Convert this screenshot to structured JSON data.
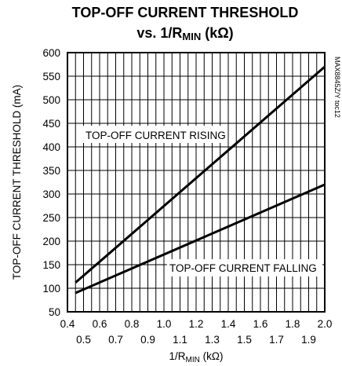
{
  "chart_data": {
    "type": "line",
    "title_line1": "TOP-OFF CURRENT THRESHOLD",
    "title_line2_prefix": "vs. 1/R",
    "title_line2_sub": "MIN",
    "title_line2_suffix": " (kΩ)",
    "xlabel_prefix": "1/R",
    "xlabel_sub": "MIN",
    "xlabel_suffix": " (kΩ)",
    "ylabel": "TOP-OFF CURRENT THRESHOLD (mA)",
    "xlim": [
      0.4,
      2.0
    ],
    "ylim": [
      50,
      600
    ],
    "x_ticks_top_row": [
      "0.4",
      "0.6",
      "0.8",
      "1.0",
      "1.2",
      "1.4",
      "1.6",
      "1.8",
      "2.0"
    ],
    "x_ticks_bottom_row": [
      "0.5",
      "0.7",
      "0.9",
      "1.1",
      "1.3",
      "1.5",
      "1.7",
      "1.9"
    ],
    "y_ticks": [
      "600",
      "550",
      "500",
      "450",
      "400",
      "350",
      "300",
      "250",
      "200",
      "150",
      "100",
      "50"
    ],
    "grid": true,
    "series": [
      {
        "name": "TOP-OFF CURRENT RISING",
        "x": [
          0.45,
          2.0
        ],
        "y": [
          112,
          570
        ]
      },
      {
        "name": "TOP-OFF CURRENT FALLING",
        "x": [
          0.45,
          2.0
        ],
        "y": [
          90,
          320
        ]
      }
    ],
    "annotations": [
      {
        "text": "TOP-OFF CURRENT RISING"
      },
      {
        "text": "TOP-OFF CURRENT FALLING"
      }
    ],
    "figure_code": "MAX8845Z/Y toc12"
  }
}
